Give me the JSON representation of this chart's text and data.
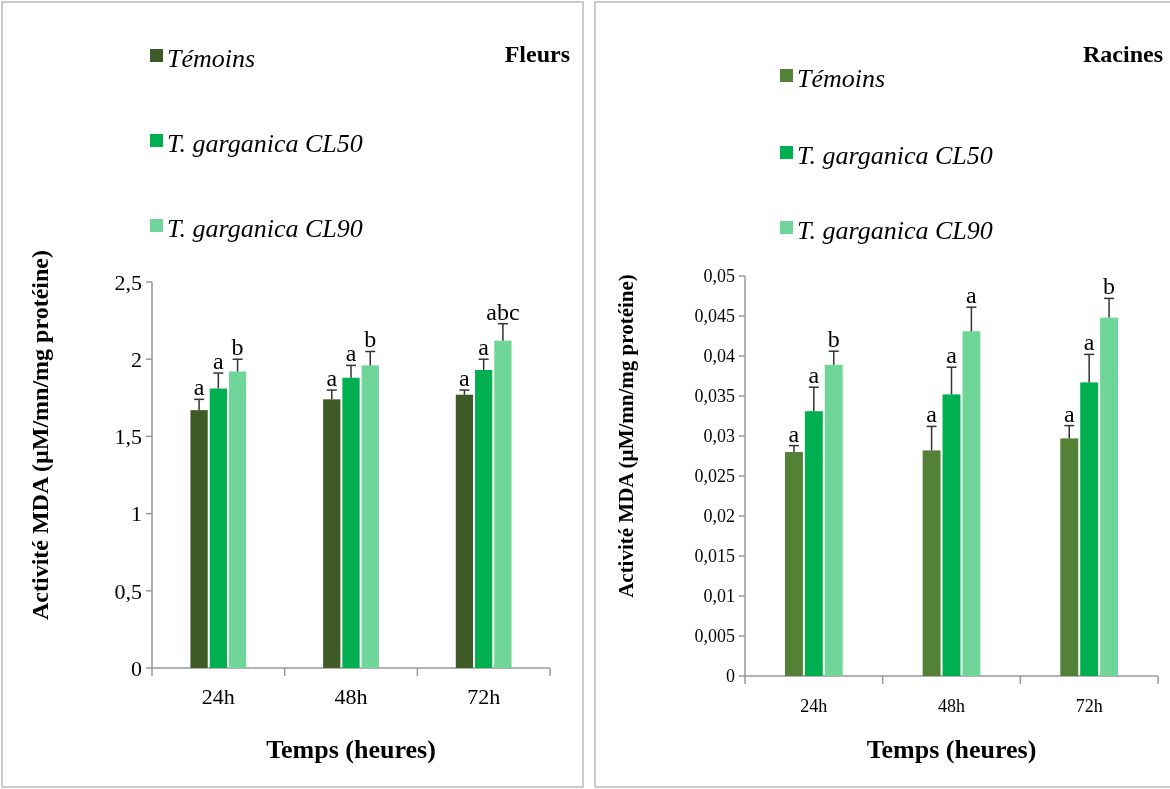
{
  "chart_data": [
    {
      "type": "bar",
      "title": "Fleurs",
      "xlabel": "Temps (heures)",
      "ylabel": "Activité MDA (µM/mn/mg protéine)",
      "categories": [
        "24h",
        "48h",
        "72h"
      ],
      "series": [
        {
          "name": "Témoins",
          "color": "#3d5a27",
          "values": [
            1.67,
            1.74,
            1.77
          ],
          "errors": [
            0.07,
            0.06,
            0.03
          ]
        },
        {
          "name": "T. garganica CL50",
          "color": "#00b050",
          "values": [
            1.81,
            1.88,
            1.93
          ],
          "errors": [
            0.1,
            0.08,
            0.07
          ]
        },
        {
          "name": "T. garganica CL90",
          "color": "#6fd598",
          "values": [
            1.92,
            1.96,
            2.12
          ],
          "errors": [
            0.08,
            0.09,
            0.11
          ]
        }
      ],
      "ylim": [
        0,
        2.5
      ],
      "yticks": [
        0,
        {
          "value": 0.5,
          "label": "0,5"
        },
        1,
        {
          "value": 1.5,
          "label": "1,5"
        },
        2,
        {
          "value": 2.5,
          "label": "2,5"
        }
      ],
      "grid": false,
      "legend": "top left",
      "annotations": [
        "a",
        "a",
        "b",
        "a",
        "a",
        "b",
        "a",
        "a",
        "abc"
      ]
    },
    {
      "type": "bar",
      "title": "Racines",
      "xlabel": "Temps (heures)",
      "ylabel": "Activité MDA (µM/mn/mg protéine)",
      "categories": [
        "24h",
        "48h",
        "72h"
      ],
      "series": [
        {
          "name": "Témoins",
          "color": "#538135",
          "values": [
            0.028,
            0.0282,
            0.0297
          ],
          "errors": [
            0.0008,
            0.003,
            0.0016
          ]
        },
        {
          "name": "T. garganica CL50",
          "color": "#00b050",
          "values": [
            0.0331,
            0.0352,
            0.0367
          ],
          "errors": [
            0.003,
            0.0034,
            0.0035
          ]
        },
        {
          "name": "T. garganica CL90",
          "color": "#6fd598",
          "values": [
            0.0389,
            0.0431,
            0.0448
          ],
          "errors": [
            0.0017,
            0.003,
            0.0024
          ]
        }
      ],
      "ylim": [
        0,
        0.05
      ],
      "yticks": [
        0,
        {
          "value": 0.005,
          "label": "0,005"
        },
        {
          "value": 0.01,
          "label": "0,01"
        },
        {
          "value": 0.015,
          "label": "0,015"
        },
        {
          "value": 0.02,
          "label": "0,02"
        },
        {
          "value": 0.025,
          "label": "0,025"
        },
        {
          "value": 0.03,
          "label": "0,03"
        },
        {
          "value": 0.035,
          "label": "0,035"
        },
        {
          "value": 0.04,
          "label": "0,04"
        },
        {
          "value": 0.045,
          "label": "0,045"
        },
        {
          "value": 0.05,
          "label": "0,05"
        }
      ],
      "grid": false,
      "legend": "top left",
      "annotations": [
        "a",
        "a",
        "b",
        "a",
        "a",
        "a",
        "a",
        "a",
        "b"
      ]
    }
  ]
}
